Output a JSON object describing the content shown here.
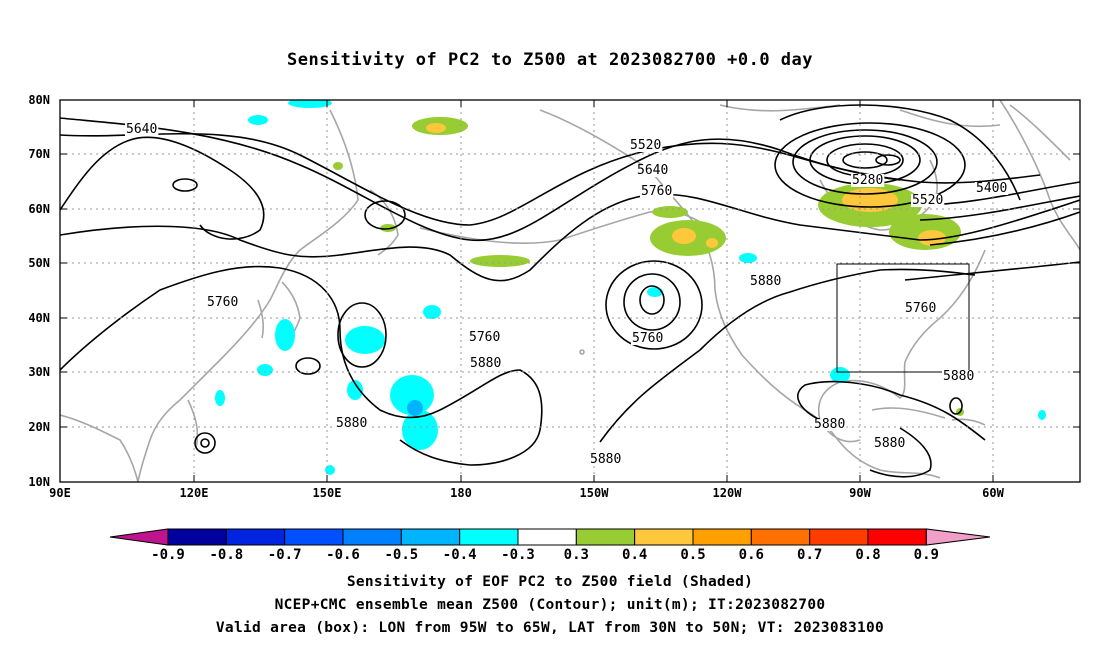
{
  "title": "Sensitivity of PC2 to Z500 at 2023082700 +0.0 day",
  "map": {
    "lat_labels": [
      "80N",
      "70N",
      "60N",
      "50N",
      "40N",
      "30N",
      "20N",
      "10N"
    ],
    "lon_labels": [
      "90E",
      "120E",
      "150E",
      "180",
      "150W",
      "120W",
      "90W",
      "60W"
    ],
    "lon_range_east": [
      90,
      310
    ],
    "lat_range": [
      10,
      80
    ],
    "graticule": "dotted gray, every 30 deg lon and 10 deg lat",
    "contour_labels": [
      "5640",
      "5520",
      "5640",
      "5760",
      "5280",
      "5400",
      "5520",
      "5760",
      "5880",
      "5880",
      "5760",
      "5880",
      "5760",
      "5880",
      "5880",
      "5880",
      "5880",
      "5760"
    ],
    "valid_box": {
      "lon": [
        "95W",
        "65W"
      ],
      "lat": [
        "30N",
        "50N"
      ]
    }
  },
  "colorbar": {
    "colors": [
      "#c0138e",
      "#00009e",
      "#0024e0",
      "#0050ff",
      "#0080ff",
      "#00b4ff",
      "#00ffff",
      "#ffffff",
      "#98cc33",
      "#ffc83c",
      "#ffa000",
      "#ff7000",
      "#ff3c00",
      "#ff0000",
      "#f0a0c8"
    ],
    "labels": [
      "-0.9",
      "-0.8",
      "-0.7",
      "-0.6",
      "-0.5",
      "-0.4",
      "-0.3",
      "0.3",
      "0.4",
      "0.5",
      "0.6",
      "0.7",
      "0.8",
      "0.9"
    ]
  },
  "captions": {
    "line1": "Sensitivity of EOF PC2 to Z500 field (Shaded)",
    "line2": "NCEP+CMC ensemble mean Z500 (Contour); unit(m); IT:2023082700",
    "line3": "Valid area (box): LON from 95W to 65W, LAT from 30N to 50N; VT: 2023083100"
  }
}
